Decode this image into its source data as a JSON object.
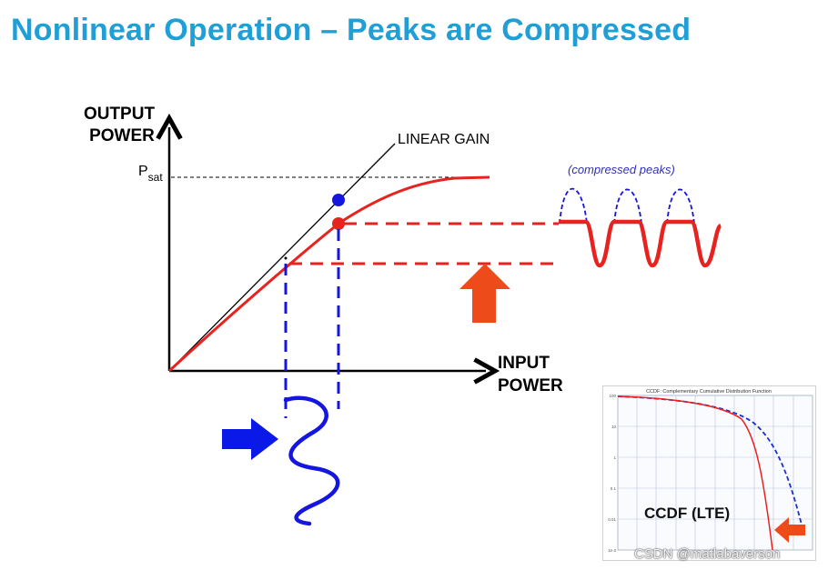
{
  "title": "Nonlinear Operation – Peaks are Compressed",
  "diagram": {
    "output_power_label_1": "OUTPUT",
    "output_power_label_2": "POWER",
    "input_power_label_1": "INPUT",
    "input_power_label_2": "POWER",
    "psat_label": "P",
    "psat_subscript": "sat",
    "linear_gain_label": "LINEAR GAIN",
    "compressed_peaks_label": "(compressed peaks)",
    "colors": {
      "curve": "#e8231f",
      "linear": "#000000",
      "input_wave": "#1515e0",
      "arrow_red": "#ee4b1a",
      "arrow_blue": "#0a18e8",
      "title": "#1f9fd6"
    }
  },
  "inset": {
    "title": "CCDF: Complementary Cumulative Distribution Function",
    "caption": "CCDF (LTE)",
    "y_ticks": [
      "100",
      "10",
      "1",
      "0.1",
      "0.01",
      "1e-3"
    ]
  },
  "watermark": "CSDN @matlabaverson"
}
